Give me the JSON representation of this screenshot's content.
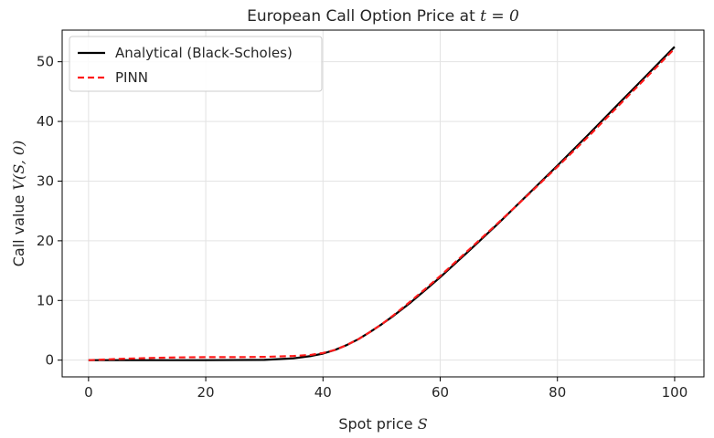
{
  "chart_data": {
    "type": "line",
    "title": {
      "prefix": "European Call Option Price at ",
      "math": "t = 0"
    },
    "xlabel": {
      "prefix": "Spot price ",
      "math": "S"
    },
    "ylabel": {
      "prefix": "Call value ",
      "math": "V(S, 0)"
    },
    "xlim": [
      -4.5,
      105
    ],
    "ylim": [
      -2.8,
      55.3
    ],
    "xticks": [
      0,
      20,
      40,
      60,
      80,
      100
    ],
    "yticks": [
      0,
      10,
      20,
      30,
      40,
      50
    ],
    "grid": true,
    "legend_position": "top-left",
    "series": [
      {
        "name": "Analytical (Black-Scholes)",
        "color": "#000000",
        "style": "solid",
        "x": [
          0,
          10,
          20,
          30,
          35,
          38,
          40,
          42,
          44,
          46,
          48,
          50,
          52,
          55,
          58,
          60,
          65,
          70,
          75,
          80,
          85,
          90,
          95,
          100
        ],
        "y": [
          0,
          0,
          0,
          0.05,
          0.3,
          0.7,
          1.1,
          1.7,
          2.5,
          3.5,
          4.7,
          6.0,
          7.4,
          9.7,
          12.2,
          13.9,
          18.4,
          23.0,
          27.8,
          32.6,
          37.5,
          42.5,
          47.5,
          52.5
        ]
      },
      {
        "name": "PINN",
        "color": "#ff1a1a",
        "style": "dashed",
        "x": [
          0,
          5,
          10,
          15,
          20,
          25,
          30,
          35,
          38,
          40,
          42,
          44,
          46,
          48,
          50,
          52,
          55,
          58,
          60,
          65,
          70,
          75,
          80,
          85,
          90,
          95,
          100
        ],
        "y": [
          0,
          0.2,
          0.35,
          0.45,
          0.5,
          0.5,
          0.55,
          0.7,
          0.9,
          1.2,
          1.7,
          2.5,
          3.5,
          4.7,
          6.0,
          7.5,
          9.9,
          12.4,
          14.1,
          18.6,
          23.1,
          27.7,
          32.4,
          37.2,
          42.2,
          47.2,
          52.2
        ]
      }
    ]
  }
}
